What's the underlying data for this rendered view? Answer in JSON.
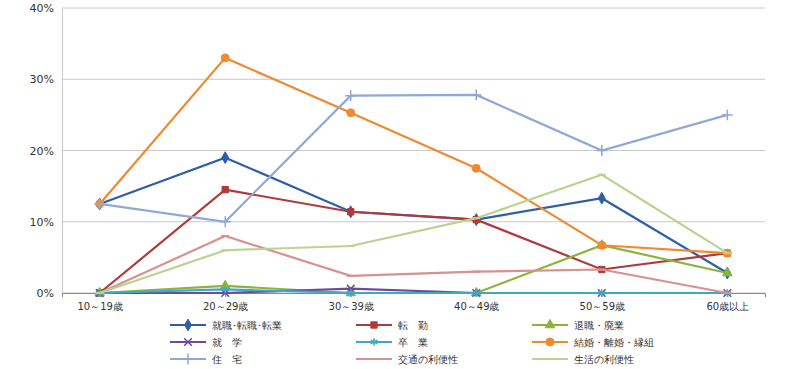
{
  "chart_data": {
    "type": "line",
    "categories": [
      "10～19歳",
      "20～29歳",
      "30～39歳",
      "40～49歳",
      "50～59歳",
      "60歳以上"
    ],
    "ylim": [
      0,
      40
    ],
    "yticks": [
      {
        "value": 0,
        "label": "0%"
      },
      {
        "value": 10,
        "label": "10%"
      },
      {
        "value": 20,
        "label": "20%"
      },
      {
        "value": 30,
        "label": "30%"
      },
      {
        "value": 40,
        "label": "40%"
      }
    ],
    "grid": true,
    "legend": "bottom",
    "series": [
      {
        "name": "就職･転職･転業",
        "color": "#2e5ea8",
        "marker": "diamond",
        "values": [
          12.5,
          19.0,
          11.4,
          10.3,
          13.3,
          2.8
        ]
      },
      {
        "name": "転　勤",
        "color": "#b03a3a",
        "marker": "square",
        "values": [
          0,
          14.5,
          11.4,
          10.3,
          3.3,
          5.6
        ]
      },
      {
        "name": "退職・廃業",
        "color": "#8db33a",
        "marker": "triangle",
        "values": [
          0,
          1.0,
          0,
          0,
          6.7,
          2.8
        ]
      },
      {
        "name": "就　学",
        "color": "#6b4c9a",
        "marker": "x",
        "values": [
          0,
          0,
          0.6,
          0,
          0,
          0
        ]
      },
      {
        "name": "卒　業",
        "color": "#3fa8c8",
        "marker": "asterisk",
        "values": [
          0,
          0.5,
          0,
          0,
          0,
          0
        ]
      },
      {
        "name": "結婚・離婚・縁組",
        "color": "#f08a30",
        "marker": "circle",
        "values": [
          12.5,
          33.0,
          25.3,
          17.5,
          6.7,
          5.6
        ]
      },
      {
        "name": "住　宅",
        "color": "#8ea8d8",
        "marker": "plus",
        "values": [
          12.5,
          10.0,
          27.7,
          27.8,
          20.0,
          25.0
        ]
      },
      {
        "name": "交通の利便性",
        "color": "#d89090",
        "marker": "dash",
        "values": [
          0,
          8.0,
          2.4,
          3.0,
          3.3,
          0
        ]
      },
      {
        "name": "生活の利便性",
        "color": "#b8d490",
        "marker": "dash",
        "values": [
          0,
          6.0,
          6.6,
          10.5,
          16.6,
          5.6
        ]
      }
    ]
  }
}
